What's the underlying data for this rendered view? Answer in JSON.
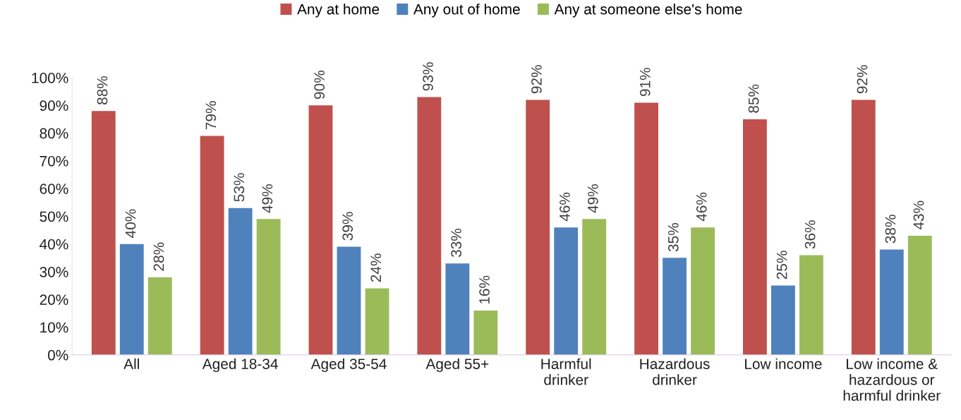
{
  "chart_data": {
    "type": "bar",
    "categories": [
      "All",
      "Aged 18-34",
      "Aged 35-54",
      "Aged 55+",
      "Harmful\ndrinker",
      "Hazardous\ndrinker",
      "Low income",
      "Low income &\nhazardous or\nharmful drinker"
    ],
    "series": [
      {
        "name": "Any at home",
        "color": "#c0504d",
        "values": [
          88,
          79,
          90,
          93,
          92,
          91,
          85,
          92
        ],
        "value_labels": [
          "88%",
          "79%",
          "90%",
          "93%",
          "92%",
          "91%",
          "85%",
          "92%"
        ]
      },
      {
        "name": "Any out of home",
        "color": "#4f81bd",
        "values": [
          40,
          53,
          39,
          33,
          46,
          35,
          25,
          38
        ],
        "value_labels": [
          "40%",
          "53%",
          "39%",
          "33%",
          "46%",
          "35%",
          "25%",
          "38%"
        ]
      },
      {
        "name": "Any at someone else's home",
        "color": "#9bbb59",
        "values": [
          28,
          49,
          24,
          16,
          49,
          46,
          36,
          43
        ],
        "value_labels": [
          "28%",
          "49%",
          "24%",
          "16%",
          "49%",
          "46%",
          "36%",
          "43%"
        ]
      }
    ],
    "ylim": [
      0,
      100
    ],
    "yticks": [
      {
        "value": 0,
        "label": "0%"
      },
      {
        "value": 10,
        "label": "10%"
      },
      {
        "value": 20,
        "label": "20%"
      },
      {
        "value": 30,
        "label": "30%"
      },
      {
        "value": 40,
        "label": "40%"
      },
      {
        "value": 50,
        "label": "50%"
      },
      {
        "value": 60,
        "label": "60%"
      },
      {
        "value": 70,
        "label": "70%"
      },
      {
        "value": 80,
        "label": "80%"
      },
      {
        "value": 90,
        "label": "90%"
      },
      {
        "value": 100,
        "label": "100%"
      }
    ],
    "grid": false,
    "legend": "top"
  }
}
